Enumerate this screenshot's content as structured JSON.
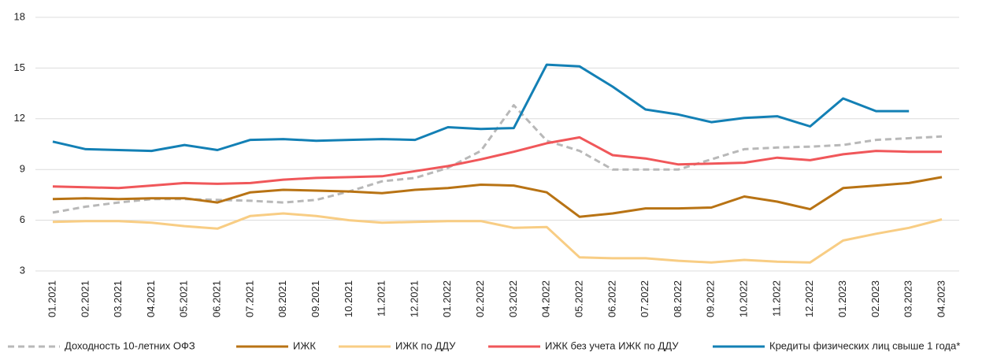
{
  "chart_data": {
    "type": "line",
    "categories": [
      "01.2021",
      "02.2021",
      "03.2021",
      "04.2021",
      "05.2021",
      "06.2021",
      "07.2021",
      "08.2021",
      "09.2021",
      "10.2021",
      "11.2021",
      "12.2021",
      "01.2022",
      "02.2022",
      "03.2022",
      "04.2022",
      "05.2022",
      "06.2022",
      "07.2022",
      "08.2022",
      "09.2022",
      "10.2022",
      "11.2022",
      "12.2022",
      "01.2023",
      "02.2023",
      "03.2023",
      "04.2023"
    ],
    "series": [
      {
        "name": "Доходность 10-летних ОФЗ",
        "color": "#b8b8b8",
        "dashed": true,
        "values": [
          6.45,
          6.8,
          7.05,
          7.25,
          7.25,
          7.2,
          7.15,
          7.05,
          7.2,
          7.7,
          8.3,
          8.5,
          9.1,
          10.1,
          12.8,
          10.7,
          10.1,
          9.0,
          9.0,
          9.0,
          9.6,
          10.2,
          10.3,
          10.35,
          10.45,
          10.75,
          10.85,
          10.95
        ]
      },
      {
        "name": "ИЖК",
        "color": "#b87314",
        "values": [
          7.25,
          7.3,
          7.25,
          7.3,
          7.3,
          7.05,
          7.65,
          7.8,
          7.75,
          7.7,
          7.6,
          7.8,
          7.9,
          8.1,
          8.05,
          7.65,
          6.2,
          6.4,
          6.7,
          6.7,
          6.75,
          7.4,
          7.1,
          6.65,
          7.9,
          8.05,
          8.2,
          8.55
        ]
      },
      {
        "name": "ИЖК по ДДУ",
        "color": "#f8cd84",
        "values": [
          5.9,
          5.95,
          5.95,
          5.85,
          5.65,
          5.5,
          6.25,
          6.4,
          6.25,
          6.0,
          5.85,
          5.9,
          5.95,
          5.95,
          5.55,
          5.6,
          3.8,
          3.75,
          3.75,
          3.6,
          3.5,
          3.65,
          3.55,
          3.5,
          4.8,
          5.2,
          5.55,
          6.05
        ]
      },
      {
        "name": "ИЖК без учета ИЖК по ДДУ",
        "color": "#f0575a",
        "values": [
          8.0,
          7.95,
          7.9,
          8.05,
          8.2,
          8.15,
          8.2,
          8.4,
          8.5,
          8.55,
          8.6,
          8.9,
          9.2,
          9.6,
          10.05,
          10.55,
          10.9,
          9.85,
          9.65,
          9.3,
          9.35,
          9.4,
          9.7,
          9.55,
          9.9,
          10.1,
          10.05,
          10.05
        ]
      },
      {
        "name": "Кредиты физических лиц свыше 1 года*",
        "color": "#1380b5",
        "values": [
          10.65,
          10.2,
          10.15,
          10.1,
          10.45,
          10.15,
          10.75,
          10.8,
          10.7,
          10.75,
          10.8,
          10.75,
          11.5,
          11.4,
          11.45,
          15.2,
          15.1,
          13.9,
          12.55,
          12.25,
          11.8,
          12.05,
          12.15,
          11.55,
          13.2,
          12.45,
          12.45,
          null
        ]
      }
    ],
    "ylim": [
      3,
      18
    ],
    "yticks": [
      3,
      6,
      9,
      12,
      15,
      18
    ],
    "grid": true,
    "legend": "bottom"
  }
}
